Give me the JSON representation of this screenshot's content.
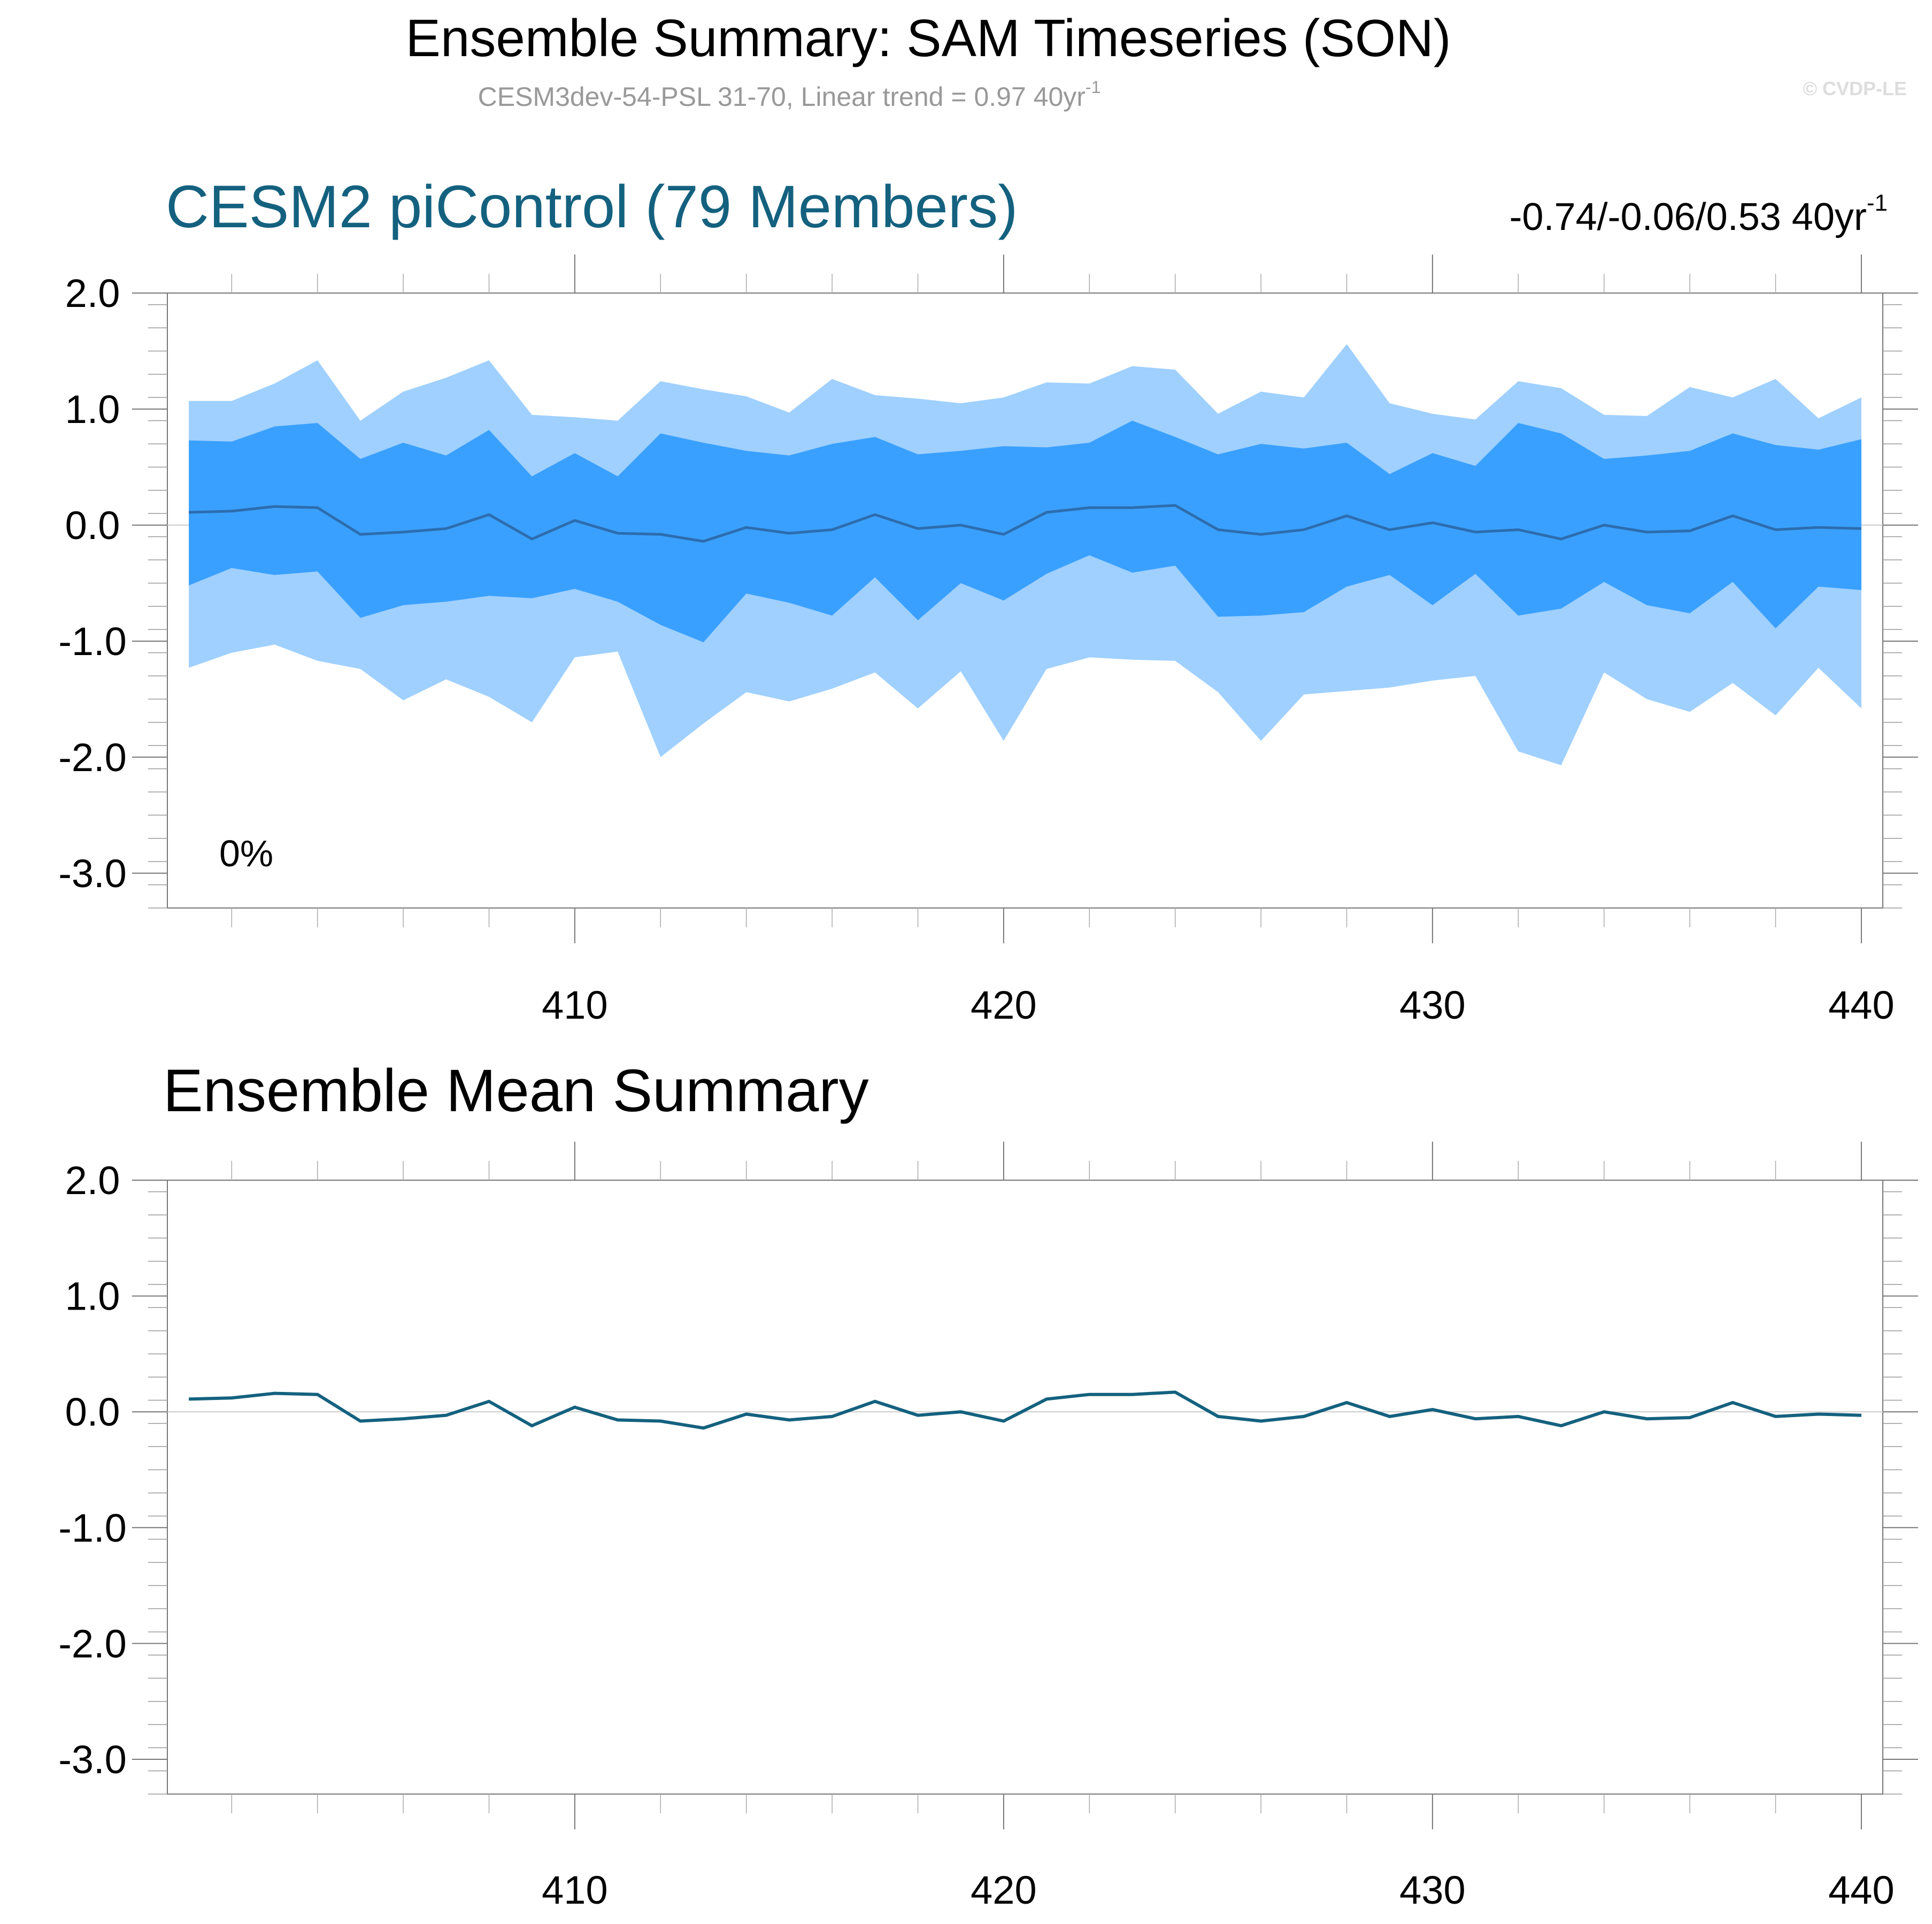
{
  "header": {
    "title": "Ensemble Summary: SAM Timeseries (SON)",
    "subtitle_main": "CESM3dev-54-PSL 31-70, Linear trend = 0.97 40yr",
    "subtitle_sup": "-1",
    "copyright": "© CVDP-LE"
  },
  "colors": {
    "outer_band": "#9fd0ff",
    "inner_band": "#3aa0ff",
    "ensemble_line": "#2c6dae",
    "mean_line": "#14617f",
    "panel_title": "#14617f",
    "axis": "#777777",
    "zero_line": "#cccccc"
  },
  "chart_data": [
    {
      "type": "area",
      "title": "CESM2 piControl (79 Members)",
      "trend_text": "-0.74/-0.06/0.53 40yr",
      "trend_sup": "-1",
      "annotation": "0%",
      "xlim": [
        400.5,
        440.5
      ],
      "ylim": [
        -3.3,
        2.0
      ],
      "x_ticks": [
        410,
        420,
        430,
        440
      ],
      "x_tick_labels": [
        "410",
        "420",
        "430",
        "440"
      ],
      "y_ticks": [
        2.0,
        1.0,
        0.0,
        -1.0,
        -2.0,
        -3.0
      ],
      "y_tick_labels": [
        "2.0",
        "1.0",
        "0.0",
        "-1.0",
        "-2.0",
        "-3.0"
      ],
      "x": [
        401,
        402,
        403,
        404,
        405,
        406,
        407,
        408,
        409,
        410,
        411,
        412,
        413,
        414,
        415,
        416,
        417,
        418,
        419,
        420,
        421,
        422,
        423,
        424,
        425,
        426,
        427,
        428,
        429,
        430,
        431,
        432,
        433,
        434,
        435,
        436,
        437,
        438,
        439,
        440
      ],
      "series": [
        {
          "name": "upper_outer",
          "values": [
            1.07,
            1.07,
            1.22,
            1.42,
            0.9,
            1.15,
            1.27,
            1.42,
            0.95,
            0.93,
            0.9,
            1.24,
            1.17,
            1.11,
            0.97,
            1.26,
            1.12,
            1.09,
            1.05,
            1.1,
            1.23,
            1.22,
            1.37,
            1.34,
            0.96,
            1.15,
            1.1,
            1.56,
            1.05,
            0.96,
            0.91,
            1.24,
            1.18,
            0.95,
            0.94,
            1.19,
            1.1,
            1.26,
            0.92,
            1.1
          ]
        },
        {
          "name": "upper_inner",
          "values": [
            0.73,
            0.72,
            0.85,
            0.88,
            0.57,
            0.71,
            0.6,
            0.82,
            0.42,
            0.62,
            0.42,
            0.79,
            0.71,
            0.64,
            0.6,
            0.7,
            0.76,
            0.61,
            0.64,
            0.68,
            0.67,
            0.71,
            0.9,
            0.76,
            0.61,
            0.7,
            0.66,
            0.71,
            0.44,
            0.62,
            0.51,
            0.88,
            0.79,
            0.57,
            0.6,
            0.64,
            0.79,
            0.69,
            0.65,
            0.74
          ]
        },
        {
          "name": "ensemble_mean",
          "values": [
            0.11,
            0.12,
            0.16,
            0.15,
            -0.08,
            -0.06,
            -0.03,
            0.09,
            -0.12,
            0.04,
            -0.07,
            -0.08,
            -0.14,
            -0.02,
            -0.07,
            -0.04,
            0.09,
            -0.03,
            0.0,
            -0.08,
            0.11,
            0.15,
            0.15,
            0.17,
            -0.04,
            -0.08,
            -0.04,
            0.08,
            -0.04,
            0.02,
            -0.06,
            -0.04,
            -0.12,
            0.0,
            -0.06,
            -0.05,
            0.08,
            -0.04,
            -0.02,
            -0.03
          ]
        },
        {
          "name": "lower_inner",
          "values": [
            -0.52,
            -0.37,
            -0.43,
            -0.4,
            -0.8,
            -0.69,
            -0.66,
            -0.61,
            -0.63,
            -0.55,
            -0.66,
            -0.86,
            -1.01,
            -0.59,
            -0.67,
            -0.78,
            -0.45,
            -0.82,
            -0.5,
            -0.65,
            -0.42,
            -0.26,
            -0.41,
            -0.35,
            -0.79,
            -0.78,
            -0.75,
            -0.53,
            -0.43,
            -0.69,
            -0.42,
            -0.78,
            -0.72,
            -0.49,
            -0.69,
            -0.76,
            -0.49,
            -0.89,
            -0.53,
            -0.56
          ]
        },
        {
          "name": "lower_outer",
          "values": [
            -1.23,
            -1.1,
            -1.03,
            -1.17,
            -1.24,
            -1.51,
            -1.33,
            -1.48,
            -1.7,
            -1.14,
            -1.09,
            -2.0,
            -1.71,
            -1.44,
            -1.52,
            -1.41,
            -1.27,
            -1.58,
            -1.26,
            -1.86,
            -1.24,
            -1.14,
            -1.16,
            -1.17,
            -1.44,
            -1.86,
            -1.46,
            -1.43,
            -1.4,
            -1.34,
            -1.3,
            -1.95,
            -2.07,
            -1.27,
            -1.5,
            -1.61,
            -1.36,
            -1.64,
            -1.23,
            -1.58
          ]
        }
      ]
    },
    {
      "type": "line",
      "title": "Ensemble Mean Summary",
      "xlim": [
        400.5,
        440.5
      ],
      "ylim": [
        -3.3,
        2.0
      ],
      "x_ticks": [
        410,
        420,
        430,
        440
      ],
      "x_tick_labels": [
        "410",
        "420",
        "430",
        "440"
      ],
      "y_ticks": [
        2.0,
        1.0,
        0.0,
        -1.0,
        -2.0,
        -3.0
      ],
      "y_tick_labels": [
        "2.0",
        "1.0",
        "0.0",
        "-1.0",
        "-2.0",
        "-3.0"
      ],
      "x": [
        401,
        402,
        403,
        404,
        405,
        406,
        407,
        408,
        409,
        410,
        411,
        412,
        413,
        414,
        415,
        416,
        417,
        418,
        419,
        420,
        421,
        422,
        423,
        424,
        425,
        426,
        427,
        428,
        429,
        430,
        431,
        432,
        433,
        434,
        435,
        436,
        437,
        438,
        439,
        440
      ],
      "series": [
        {
          "name": "ensemble_mean",
          "values": [
            0.11,
            0.12,
            0.16,
            0.15,
            -0.08,
            -0.06,
            -0.03,
            0.09,
            -0.12,
            0.04,
            -0.07,
            -0.08,
            -0.14,
            -0.02,
            -0.07,
            -0.04,
            0.09,
            -0.03,
            0.0,
            -0.08,
            0.11,
            0.15,
            0.15,
            0.17,
            -0.04,
            -0.08,
            -0.04,
            0.08,
            -0.04,
            0.02,
            -0.06,
            -0.04,
            -0.12,
            0.0,
            -0.06,
            -0.05,
            0.08,
            -0.04,
            -0.02,
            -0.03
          ]
        }
      ]
    }
  ]
}
